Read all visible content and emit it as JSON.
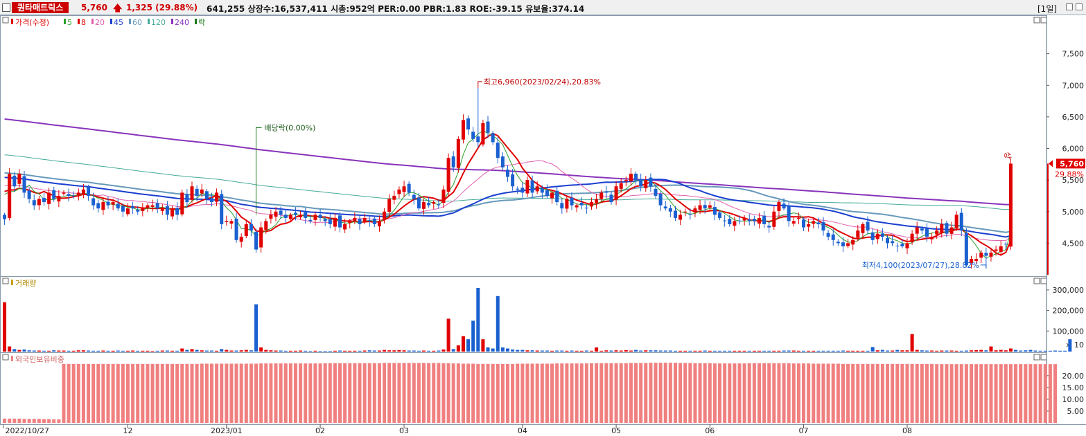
{
  "header": {
    "stock_name": "퀀타매트릭스",
    "price": "5,760",
    "change": "1,325",
    "change_pct": "(29.88%)",
    "info": "641,255  상장수:16,537,411 시총:952억  PER:0.00 PBR:1.83 ROE:-39.15 유보율:374.14",
    "period": "[1일]"
  },
  "legend": {
    "price_label": "가격(수정)",
    "ma": [
      {
        "label": "5",
        "color": "#2ca02c"
      },
      {
        "label": "8",
        "color": "#e00000"
      },
      {
        "label": "20",
        "color": "#e060b0"
      },
      {
        "label": "45",
        "color": "#1a3fd0"
      },
      {
        "label": "60",
        "color": "#6699bb"
      },
      {
        "label": "120",
        "color": "#44aa99"
      },
      {
        "label": "240",
        "color": "#8833bb"
      },
      {
        "label": "락",
        "color": "#1a7a1a"
      }
    ],
    "volume_label": "거래량",
    "foreign_label": "외국인보유비중"
  },
  "annotations": {
    "high": "최고6,960(2023/02/24),20.83%",
    "low": "최저4,100(2023/07/27),28.82%",
    "dividend": "배당락(0.00%)",
    "upper_limit": "상",
    "last_price": "5,760",
    "last_pct": "29.88%",
    "volume_unit": "× 10"
  },
  "colors": {
    "up": "#e00000",
    "down": "#1a60d0",
    "foreign_bar": "#f08080"
  },
  "chart_data": [
    {
      "type": "candlestick",
      "title": "가격(수정)",
      "ylim": [
        4000,
        8000
      ],
      "y_ticks": [
        "7,500",
        "7,000",
        "6,500",
        "6,000",
        "5,500",
        "5,000",
        "4,500"
      ],
      "x_ticks": [
        "2022/10/27",
        "12",
        "2023/01",
        "02",
        "03",
        "04",
        "05",
        "06",
        "07",
        "08"
      ],
      "closes": [
        4880,
        5600,
        5400,
        5600,
        5300,
        5200,
        5100,
        5200,
        5150,
        5300,
        5200,
        5250,
        5300,
        5250,
        5250,
        5300,
        5350,
        5250,
        5100,
        5050,
        5150,
        5100,
        5150,
        5050,
        5000,
        5050,
        5050,
        5000,
        5050,
        5100,
        5100,
        5050,
        5050,
        4950,
        5050,
        4950,
        5300,
        5150,
        5400,
        5250,
        5350,
        5200,
        5150,
        5300,
        4800,
        4850,
        4850,
        4550,
        4600,
        4800,
        4700,
        4400,
        4750,
        4850,
        4950,
        5000,
        4950,
        4900,
        4950,
        4950,
        4950,
        4900,
        4850,
        4950,
        4900,
        4850,
        4800,
        4900,
        4750,
        4800,
        4850,
        4900,
        4800,
        4900,
        4850,
        4800,
        4850,
        5000,
        5200,
        5250,
        5350,
        5400,
        5300,
        5200,
        5050,
        5150,
        5100,
        5150,
        5100,
        5350,
        5850,
        5700,
        6150,
        6450,
        6300,
        6150,
        6100,
        6400,
        6250,
        6100,
        5850,
        5700,
        5550,
        5400,
        5350,
        5300,
        5500,
        5300,
        5400,
        5300,
        5250,
        5300,
        5150,
        5050,
        5200,
        5100,
        5100,
        5100,
        5050,
        5150,
        5200,
        5300,
        5300,
        5150,
        5400,
        5450,
        5500,
        5600,
        5500,
        5400,
        5500,
        5400,
        5250,
        5100,
        5050,
        5000,
        4900,
        4950,
        5000,
        4950,
        5050,
        5100,
        5050,
        5100,
        4950,
        4900,
        4850,
        4800,
        4850,
        4850,
        4900,
        4850,
        4850,
        4900,
        4800,
        4750,
        5000,
        5150,
        5050,
        4850,
        4850,
        4900,
        4750,
        4800,
        4850,
        4800,
        4700,
        4600,
        4550,
        4500,
        4450,
        4500,
        4550,
        4700,
        4800,
        4700,
        4550,
        4650,
        4600,
        4500,
        4500,
        4450,
        4450,
        4500,
        4650,
        4750,
        4700,
        4600,
        4600,
        4700,
        4800,
        4650,
        4750,
        4950,
        4700,
        4150,
        4250,
        4250,
        4350,
        4300,
        4350,
        4400,
        4450,
        4480,
        5760
      ],
      "extreme_high": 6960,
      "extreme_low": 4100
    },
    {
      "type": "bar",
      "title": "거래량",
      "ylim": [
        0,
        330000
      ],
      "y_ticks": [
        "300,000",
        "200,000",
        "100,000"
      ],
      "note": "× 10",
      "values": [
        240000,
        25000,
        12000,
        8000,
        10000,
        6000,
        5000,
        5000,
        4000,
        4000,
        6000,
        5000,
        5000,
        4000,
        4000,
        6000,
        6000,
        5000,
        4000,
        4000,
        5000,
        4000,
        4000,
        5000,
        4000,
        4000,
        5000,
        4000,
        4000,
        4000,
        3000,
        4000,
        5000,
        5000,
        4000,
        4000,
        15000,
        8000,
        12000,
        8000,
        6000,
        5000,
        5000,
        4000,
        12000,
        8000,
        5000,
        5000,
        6000,
        8000,
        6000,
        230000,
        20000,
        8000,
        6000,
        5000,
        5000,
        4000,
        4000,
        4000,
        5000,
        4000,
        3000,
        4000,
        3000,
        3000,
        3000,
        4000,
        5000,
        4000,
        4000,
        4000,
        4000,
        5000,
        6000,
        5000,
        5000,
        8000,
        6000,
        6000,
        7000,
        6000,
        5000,
        5000,
        4000,
        5000,
        4000,
        4000,
        5000,
        10000,
        160000,
        12000,
        30000,
        75000,
        60000,
        150000,
        310000,
        60000,
        20000,
        15000,
        270000,
        20000,
        15000,
        10000,
        8000,
        8000,
        6000,
        6000,
        5000,
        5000,
        5000,
        4000,
        5000,
        5000,
        4000,
        5000,
        4000,
        4000,
        5000,
        4000,
        20000,
        4000,
        6000,
        5000,
        6000,
        5000,
        7000,
        5000,
        8000,
        5000,
        6000,
        6000,
        6000,
        5000,
        5000,
        5000,
        4000,
        4000,
        4000,
        4000,
        4000,
        4000,
        5000,
        4000,
        4000,
        4000,
        4000,
        4000,
        4000,
        4000,
        4000,
        4000,
        4000,
        4000,
        4000,
        4000,
        4000,
        4000,
        5000,
        5000,
        5000,
        4000,
        4000,
        4000,
        4000,
        4000,
        4000,
        4000,
        4000,
        4000,
        5000,
        4000,
        4000,
        4000,
        4000,
        4000,
        22000,
        6000,
        8000,
        5000,
        5000,
        8000,
        6000,
        6000,
        85000,
        8000,
        6000,
        5000,
        5000,
        4000,
        5000,
        5000,
        5000,
        4000,
        4000,
        5000,
        6000,
        7000,
        8000,
        6000,
        25000,
        6000,
        8000,
        6000,
        15000,
        8000,
        5000,
        6000,
        8000,
        5000,
        4000,
        4000,
        4000,
        5000,
        4000,
        4000,
        60000
      ]
    },
    {
      "type": "bar",
      "title": "외국인보유비중",
      "ylim": [
        0,
        27
      ],
      "y_ticks": [
        "20.00",
        "15.00",
        "10.00",
        "5.00"
      ],
      "values": [
        1.8,
        1.8,
        1.8,
        1.8,
        1.7,
        1.7,
        1.7,
        1.7,
        1.6,
        1.6,
        1.5,
        1.5,
        25.0,
        25.0,
        25.0,
        25.0,
        25.0,
        25.0,
        25.0,
        25.0,
        25.0,
        25.0,
        25.0,
        25.0,
        25.0,
        25.0,
        25.0,
        25.0,
        25.0,
        25.0,
        25.0,
        25.0,
        25.0,
        25.0,
        25.0,
        25.0,
        25.0,
        25.0,
        25.0,
        25.0,
        25.1,
        25.1,
        25.1,
        25.1,
        25.1,
        25.1,
        25.1,
        25.1,
        25.1,
        25.1,
        25.1,
        25.1,
        25.2,
        25.2,
        25.2,
        25.2,
        25.2,
        25.2,
        25.2,
        25.2,
        25.2,
        25.2,
        25.2,
        25.2,
        25.2,
        25.3,
        25.3,
        25.3,
        25.3,
        25.3,
        25.3,
        25.3,
        25.3,
        25.3,
        25.3,
        25.3,
        25.3,
        25.4,
        25.4,
        25.4,
        25.4,
        25.4,
        25.4,
        25.4,
        25.4,
        25.4,
        25.4,
        25.4,
        25.4,
        25.3,
        25.3,
        25.2,
        25.2,
        25.1,
        25.1,
        25.1,
        25.0,
        25.0,
        25.0,
        25.0,
        25.0,
        25.0,
        25.0,
        25.0,
        25.1,
        25.1,
        25.1,
        25.1,
        25.1,
        25.1,
        25.1,
        25.1,
        25.2,
        25.2,
        25.2,
        25.2,
        25.2,
        25.2,
        25.2,
        25.3,
        25.3,
        25.3,
        25.3,
        25.3,
        25.3,
        25.3,
        25.3,
        25.4,
        25.4,
        25.4,
        25.4,
        25.5,
        25.5,
        25.5,
        25.5,
        25.5,
        25.5,
        25.4,
        25.4,
        25.4,
        25.3,
        25.3,
        25.3,
        25.3,
        25.2,
        25.2,
        25.2,
        25.2,
        25.2,
        25.2,
        25.2,
        25.3,
        25.3,
        25.3,
        25.3,
        25.3,
        25.3,
        25.3,
        25.3,
        25.3,
        25.2,
        25.2,
        25.2,
        25.2,
        25.1,
        25.1,
        25.1,
        25.1,
        25.1,
        25.1,
        25.0,
        25.0,
        25.0,
        25.0,
        25.0,
        25.0,
        25.0,
        25.0,
        25.0,
        25.0,
        25.0,
        25.0,
        25.0,
        25.0,
        25.0,
        25.0,
        25.0,
        25.0,
        25.0,
        24.9,
        24.9,
        24.9,
        24.9,
        24.9,
        24.9,
        24.9,
        24.9,
        24.9,
        24.9,
        24.9,
        24.9,
        24.9,
        24.9,
        24.9,
        24.9,
        24.9,
        24.9,
        24.9,
        24.9,
        24.9,
        24.9,
        24.9,
        24.9,
        24.9
      ]
    }
  ]
}
